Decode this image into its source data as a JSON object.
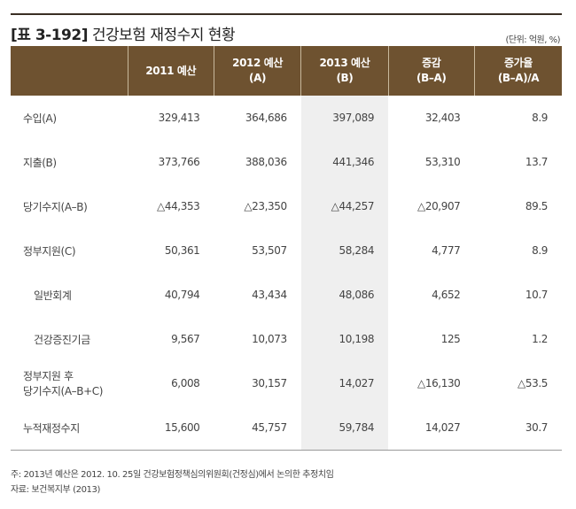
{
  "title": "[표 3-192] 건강보험 재정수지 현황",
  "title_prefix": "[표 3-192]",
  "title_text": "건강보험 재정수지 현황",
  "unit": "(단위: 억원, %)",
  "header": [
    "",
    "2011 예산",
    "2012 예산\n(A)",
    "2013 예산\n(B)",
    "증감\n(B–A)",
    "증가율\n(B–A)/A"
  ],
  "rows": [
    {
      "label": "수입(A)",
      "values": [
        "329,413",
        "364,686",
        "397,089",
        "32,403",
        "8.9"
      ]
    },
    {
      "label": "지출(B)",
      "values": [
        "373,766",
        "388,036",
        "441,346",
        "53,310",
        "13.7"
      ]
    },
    {
      "label": "당기수지(A–B)",
      "values": [
        "△44,353",
        "△23,350",
        "△44,257",
        "△20,907",
        "89.5"
      ]
    },
    {
      "label": "정부지원(C)",
      "values": [
        "50,361",
        "53,507",
        "58,284",
        "4,777",
        "8.9"
      ]
    },
    {
      "label": "일반회계",
      "indent": true,
      "values": [
        "40,794",
        "43,434",
        "48,086",
        "4,652",
        "10.7"
      ]
    },
    {
      "label": "건강증진기금",
      "indent": true,
      "values": [
        "9,567",
        "10,073",
        "10,198",
        "125",
        "1.2"
      ]
    },
    {
      "label": "정부지원 후\n당기수지(A–B+C)",
      "values": [
        "6,008",
        "30,157",
        "14,027",
        "△16,130",
        "△53.5"
      ]
    },
    {
      "label": "누적재정수지",
      "values": [
        "15,600",
        "45,757",
        "59,784",
        "14,027",
        "30.7"
      ]
    }
  ],
  "note": "주: 2013년 예산은 2012. 10. 25일 건강보험정책심의위원회(건정심)에서 논의한 추정치임",
  "source": "자료: 보건복지부 (2013)",
  "colors": {
    "header": "#6e5230",
    "highlight_column": "#efefef"
  }
}
